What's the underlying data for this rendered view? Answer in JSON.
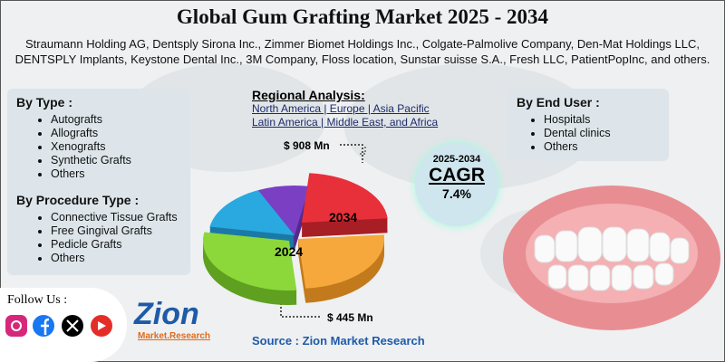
{
  "header": {
    "title": "Global Gum Grafting Market 2025 - 2034",
    "companies": "Straumann Holding AG, Dentsply Sirona Inc., Zimmer Biomet Holdings Inc., Colgate-Palmolive Company, Den-Mat Holdings LLC, DENTSPLY Implants, Keystone Dental Inc., 3M Company, Floss location, Sunstar suisse S.A., Fresh LLC, PatientPopInc, and others."
  },
  "by_type": {
    "heading": "By Type :",
    "items": [
      "Autografts",
      "Allografts",
      "Xenografts",
      "Synthetic Grafts",
      "Others"
    ]
  },
  "by_procedure": {
    "heading": "By Procedure Type :",
    "items": [
      "Connective Tissue Grafts",
      "Free Gingival Grafts",
      "Pedicle Grafts",
      "Others"
    ]
  },
  "regional": {
    "heading": "Regional Analysis:",
    "lines": [
      "North America | Europe | Asia Pacific",
      "Latin America | Middle East, and Africa"
    ]
  },
  "pie": {
    "label_2034": "2034",
    "label_2024": "2024",
    "value_2034": "$ 908 Mn",
    "value_2024": "$ 445 Mn"
  },
  "by_end_user": {
    "heading": "By End User :",
    "items": [
      "Hospitals",
      "Dental clinics",
      "Others"
    ]
  },
  "cagr": {
    "period": "2025-2034",
    "label": "CAGR",
    "value": "7.4%"
  },
  "social": {
    "heading": "Follow Us :"
  },
  "logo": {
    "name": "Zion",
    "sub": "Market.Research"
  },
  "source": "Source : Zion Market Research"
}
